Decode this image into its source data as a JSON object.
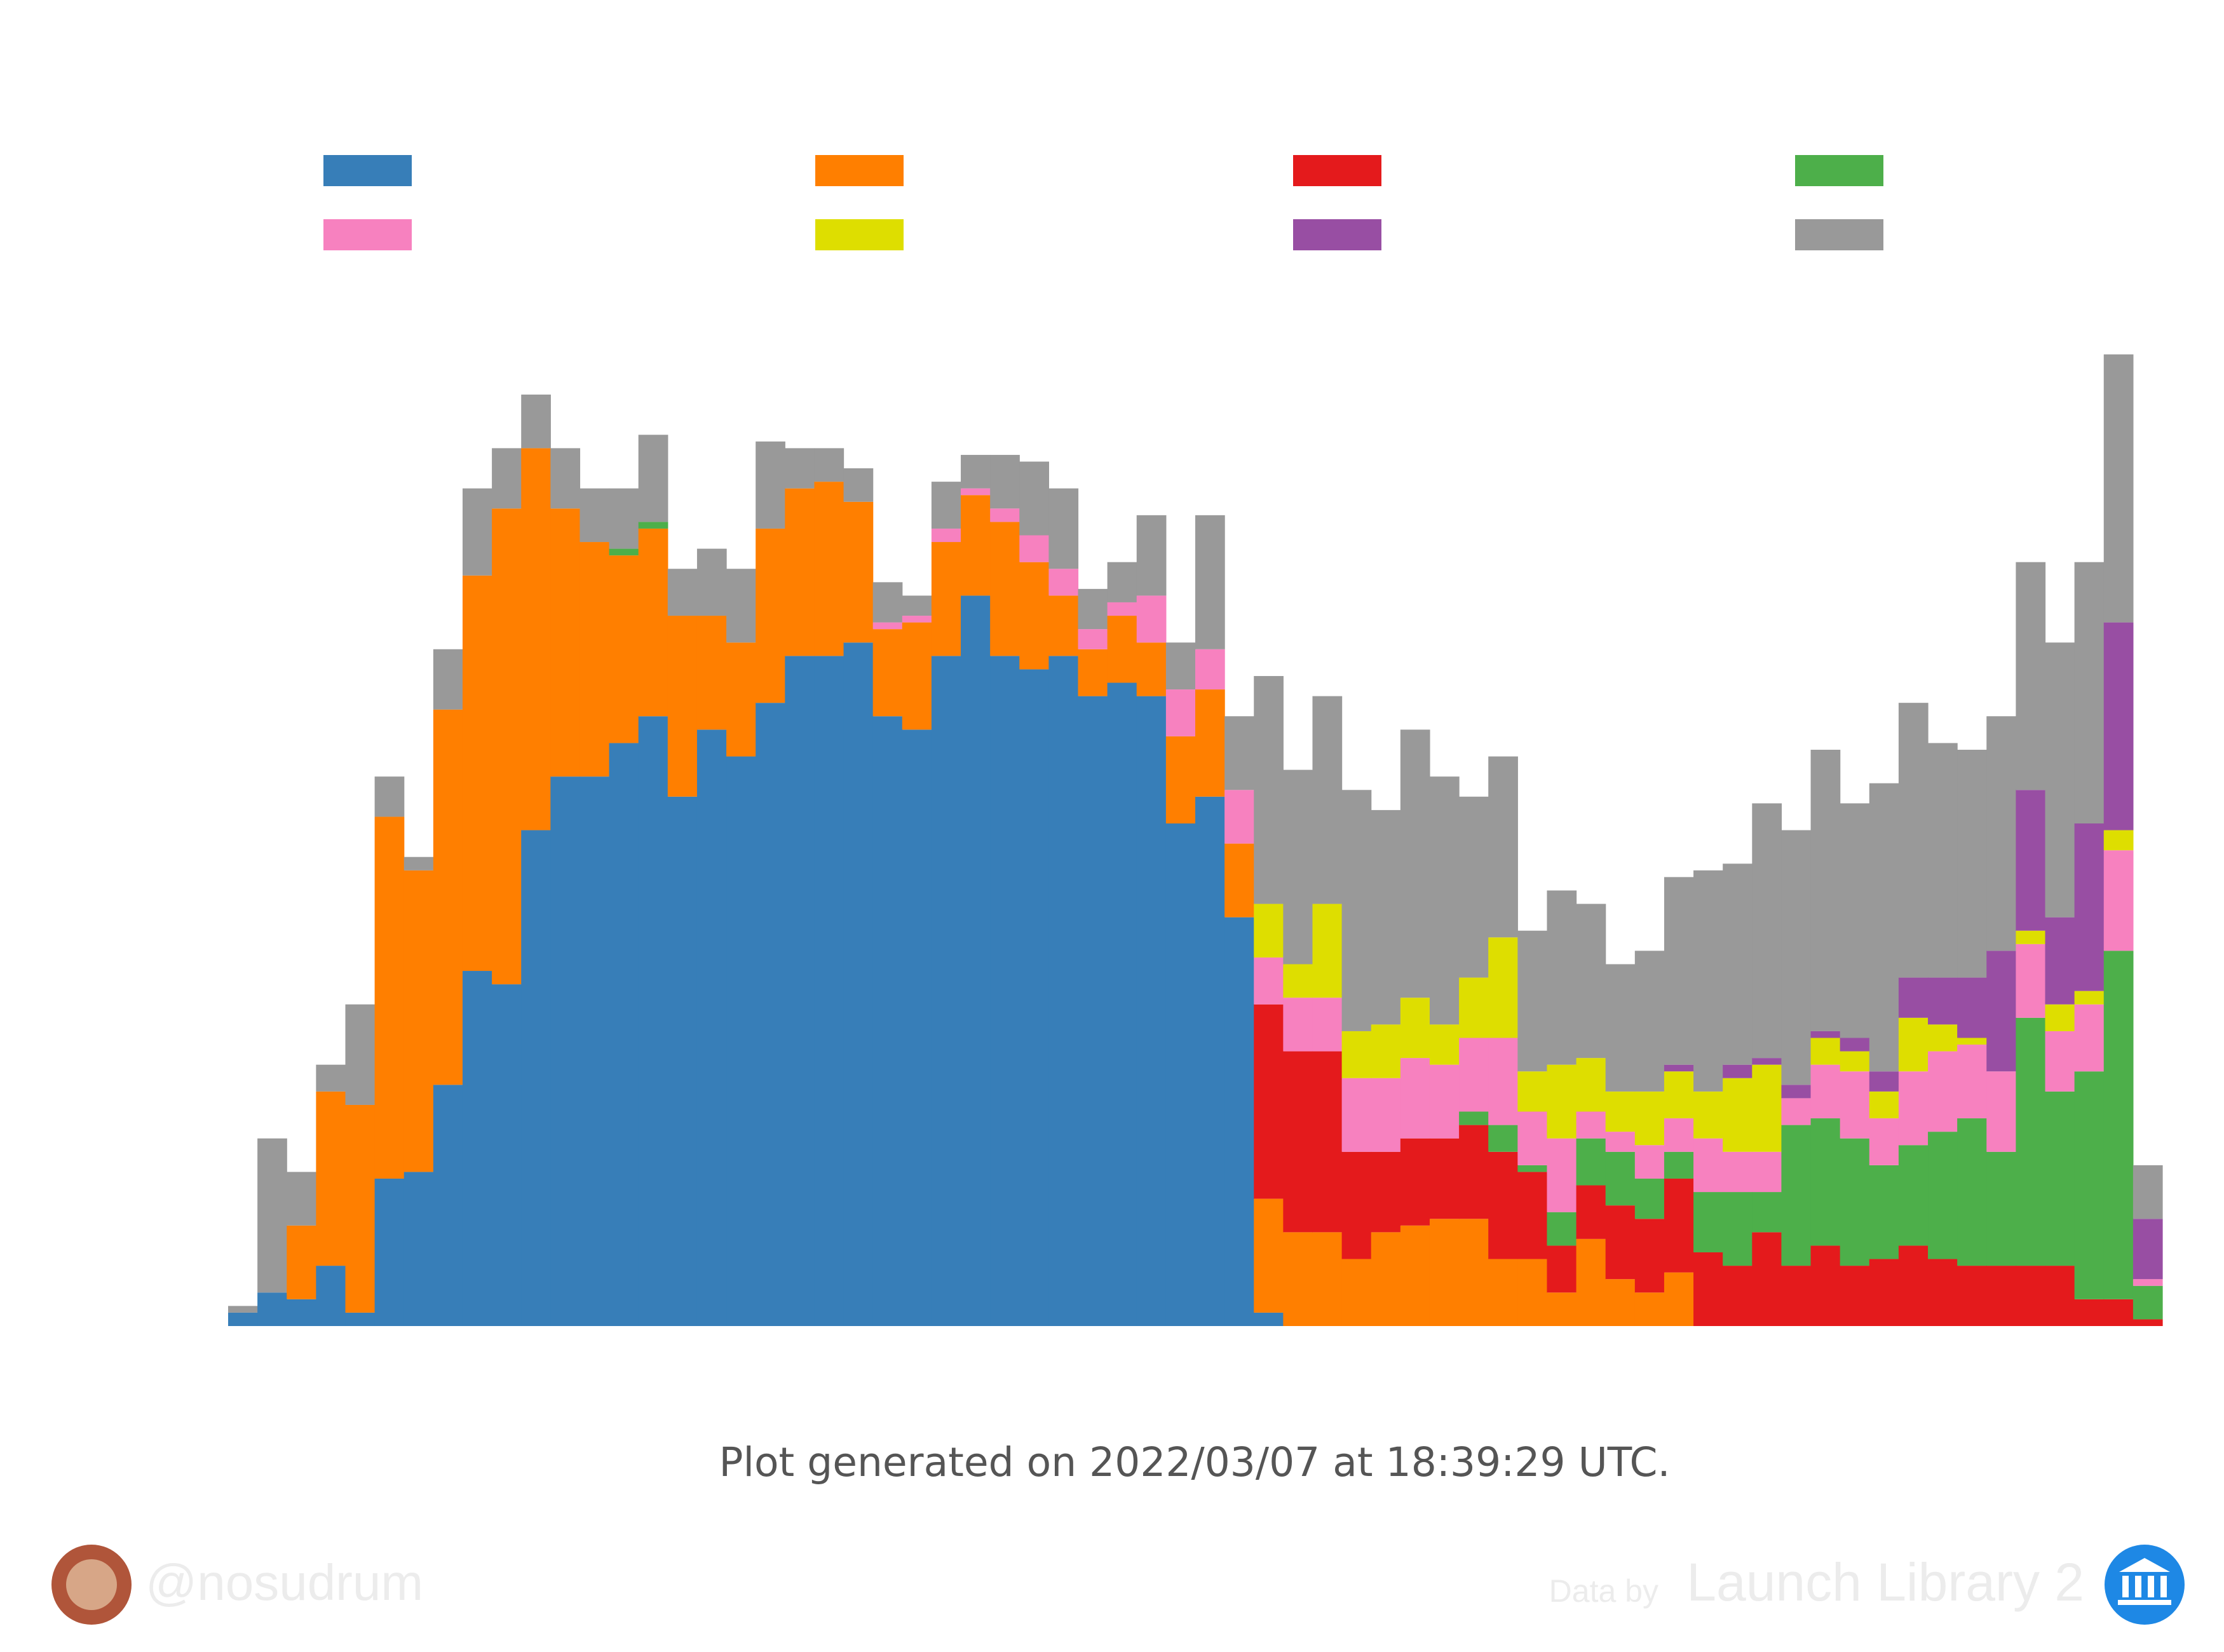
{
  "chart_data": {
    "type": "stacked-bar",
    "note": "Plot generated on 2022/03/07 at 18:39:29 UTC.",
    "categories": [
      null,
      null,
      null,
      null,
      null,
      null,
      null,
      null,
      null,
      null,
      null,
      null,
      null,
      null,
      null,
      null,
      null,
      null,
      null,
      null,
      null,
      null,
      null,
      null,
      null,
      null,
      null,
      null,
      null,
      null,
      null,
      null,
      null,
      null,
      null,
      null,
      null,
      null,
      null,
      null,
      null,
      null,
      null,
      null,
      null,
      null,
      null,
      null,
      null,
      null,
      null,
      null,
      null,
      null,
      null,
      null,
      null,
      null,
      null,
      null,
      null,
      null,
      null,
      null,
      null,
      null
    ],
    "ylim": [
      0,
      150
    ],
    "series": [
      {
        "color": "#377eb8",
        "values": [
          2,
          5,
          4,
          9,
          2,
          22,
          23,
          36,
          53,
          51,
          74,
          82,
          82,
          87,
          91,
          79,
          89,
          85,
          93,
          100,
          100,
          102,
          91,
          89,
          100,
          109,
          100,
          98,
          100,
          94,
          96,
          94,
          75,
          79,
          61,
          2,
          0,
          0,
          0,
          0,
          0,
          0,
          0,
          0,
          0,
          0,
          0,
          0,
          0,
          0,
          0,
          0,
          0,
          0,
          0,
          0,
          0,
          0,
          0,
          0,
          0,
          0,
          0,
          0,
          0,
          0
        ]
      },
      {
        "color": "#ff7f00",
        "values": [
          0,
          0,
          11,
          26,
          31,
          54,
          45,
          56,
          59,
          71,
          57,
          40,
          35,
          28,
          28,
          27,
          17,
          17,
          26,
          25,
          26,
          21,
          13,
          16,
          17,
          15,
          20,
          16,
          9,
          7,
          10,
          8,
          13,
          16,
          11,
          17,
          14,
          14,
          10,
          14,
          15,
          16,
          16,
          10,
          10,
          5,
          13,
          7,
          5,
          8,
          0,
          0,
          0,
          0,
          0,
          0,
          0,
          0,
          0,
          0,
          0,
          0,
          0,
          0,
          0,
          0
        ]
      },
      {
        "color": "#e41a1c",
        "values": [
          0,
          0,
          0,
          0,
          0,
          0,
          0,
          0,
          0,
          0,
          0,
          0,
          0,
          0,
          0,
          0,
          0,
          0,
          0,
          0,
          0,
          0,
          0,
          0,
          0,
          0,
          0,
          0,
          0,
          0,
          0,
          0,
          0,
          0,
          0,
          29,
          27,
          27,
          16,
          12,
          13,
          12,
          14,
          16,
          13,
          7,
          8,
          11,
          11,
          14,
          11,
          9,
          14,
          9,
          12,
          9,
          10,
          12,
          10,
          9,
          9,
          9,
          9,
          4,
          4,
          1
        ]
      },
      {
        "color": "#4daf4a",
        "values": [
          0,
          0,
          0,
          0,
          0,
          0,
          0,
          0,
          0,
          0,
          0,
          0,
          0,
          1,
          1,
          0,
          0,
          0,
          0,
          0,
          0,
          0,
          0,
          0,
          0,
          0,
          0,
          0,
          0,
          0,
          0,
          0,
          0,
          0,
          0,
          0,
          0,
          0,
          0,
          0,
          0,
          0,
          2,
          4,
          1,
          5,
          7,
          8,
          6,
          4,
          9,
          11,
          6,
          21,
          19,
          19,
          14,
          15,
          19,
          22,
          17,
          37,
          26,
          34,
          52,
          5
        ]
      },
      {
        "color": "#f781bf",
        "values": [
          0,
          0,
          0,
          0,
          0,
          0,
          0,
          0,
          0,
          0,
          0,
          0,
          0,
          0,
          0,
          0,
          0,
          0,
          0,
          0,
          0,
          0,
          1,
          1,
          2,
          1,
          2,
          4,
          4,
          3,
          2,
          7,
          7,
          6,
          8,
          7,
          8,
          8,
          11,
          11,
          12,
          11,
          11,
          13,
          8,
          11,
          4,
          3,
          5,
          5,
          8,
          6,
          6,
          4,
          8,
          10,
          7,
          11,
          12,
          11,
          12,
          11,
          9,
          10,
          15,
          1
        ]
      },
      {
        "color": "#dede00",
        "values": [
          0,
          0,
          0,
          0,
          0,
          0,
          0,
          0,
          0,
          0,
          0,
          0,
          0,
          0,
          0,
          0,
          0,
          0,
          0,
          0,
          0,
          0,
          0,
          0,
          0,
          0,
          0,
          0,
          0,
          0,
          0,
          0,
          0,
          0,
          0,
          8,
          5,
          14,
          7,
          8,
          9,
          6,
          9,
          15,
          6,
          11,
          8,
          6,
          8,
          7,
          7,
          11,
          13,
          0,
          4,
          3,
          4,
          8,
          4,
          1,
          0,
          2,
          4,
          2,
          3,
          0
        ]
      },
      {
        "color": "#984ea3",
        "values": [
          0,
          0,
          0,
          0,
          0,
          0,
          0,
          0,
          0,
          0,
          0,
          0,
          0,
          0,
          0,
          0,
          0,
          0,
          0,
          0,
          0,
          0,
          0,
          0,
          0,
          0,
          0,
          0,
          0,
          0,
          0,
          0,
          0,
          0,
          0,
          0,
          0,
          0,
          0,
          0,
          0,
          0,
          0,
          0,
          0,
          0,
          0,
          0,
          0,
          1,
          0,
          2,
          1,
          2,
          1,
          2,
          3,
          6,
          7,
          9,
          18,
          21,
          13,
          25,
          31,
          9
        ]
      },
      {
        "color": "#999999",
        "values": [
          1,
          23,
          8,
          4,
          15,
          6,
          2,
          9,
          13,
          9,
          8,
          9,
          8,
          9,
          13,
          7,
          10,
          11,
          13,
          6,
          5,
          5,
          6,
          3,
          7,
          5,
          8,
          11,
          12,
          6,
          6,
          12,
          7,
          20,
          11,
          34,
          29,
          31,
          36,
          32,
          40,
          37,
          27,
          27,
          21,
          26,
          23,
          19,
          21,
          28,
          33,
          30,
          38,
          38,
          42,
          35,
          43,
          41,
          35,
          34,
          35,
          34,
          41,
          39,
          40,
          8
        ]
      }
    ]
  },
  "footer": {
    "handle": "@nosudrum",
    "credit_prefix": "Data by",
    "credit_source": "Launch Library 2"
  }
}
